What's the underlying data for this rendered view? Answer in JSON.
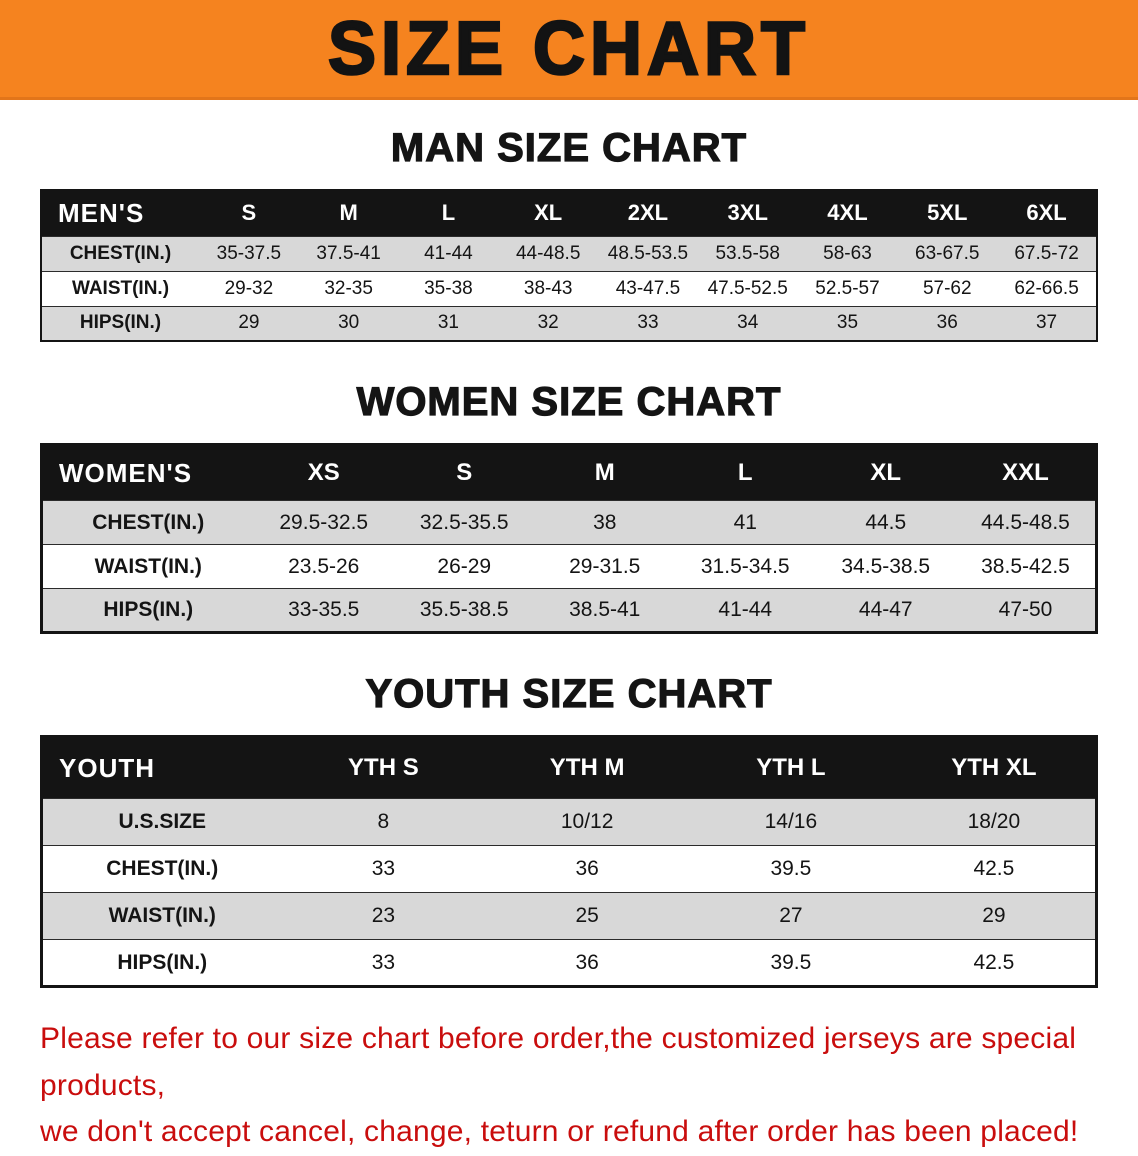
{
  "banner": {
    "title": "SIZE CHART"
  },
  "headings": {
    "men": "MAN SIZE CHART",
    "women": "WOMEN SIZE CHART",
    "youth": "YOUTH SIZE CHART"
  },
  "tables": {
    "men": {
      "header_label": "MEN'S",
      "columns": [
        "S",
        "M",
        "L",
        "XL",
        "2XL",
        "3XL",
        "4XL",
        "5XL",
        "6XL"
      ],
      "rows": [
        {
          "label": "CHEST(IN.)",
          "values": [
            "35-37.5",
            "37.5-41",
            "41-44",
            "44-48.5",
            "48.5-53.5",
            "53.5-58",
            "58-63",
            "63-67.5",
            "67.5-72"
          ]
        },
        {
          "label": "WAIST(IN.)",
          "values": [
            "29-32",
            "32-35",
            "35-38",
            "38-43",
            "43-47.5",
            "47.5-52.5",
            "52.5-57",
            "57-62",
            "62-66.5"
          ]
        },
        {
          "label": "HIPS(IN.)",
          "values": [
            "29",
            "30",
            "31",
            "32",
            "33",
            "34",
            "35",
            "36",
            "37"
          ]
        }
      ]
    },
    "women": {
      "header_label": "WOMEN'S",
      "columns": [
        "XS",
        "S",
        "M",
        "L",
        "XL",
        "XXL"
      ],
      "rows": [
        {
          "label": "CHEST(IN.)",
          "values": [
            "29.5-32.5",
            "32.5-35.5",
            "38",
            "41",
            "44.5",
            "44.5-48.5"
          ]
        },
        {
          "label": "WAIST(IN.)",
          "values": [
            "23.5-26",
            "26-29",
            "29-31.5",
            "31.5-34.5",
            "34.5-38.5",
            "38.5-42.5"
          ]
        },
        {
          "label": "HIPS(IN.)",
          "values": [
            "33-35.5",
            "35.5-38.5",
            "38.5-41",
            "41-44",
            "44-47",
            "47-50"
          ]
        }
      ]
    },
    "youth": {
      "header_label": "YOUTH",
      "columns": [
        "YTH S",
        "YTH M",
        "YTH L",
        "YTH XL"
      ],
      "rows": [
        {
          "label": "U.S.SIZE",
          "values": [
            "8",
            "10/12",
            "14/16",
            "18/20"
          ]
        },
        {
          "label": "CHEST(IN.)",
          "values": [
            "33",
            "36",
            "39.5",
            "42.5"
          ]
        },
        {
          "label": "WAIST(IN.)",
          "values": [
            "23",
            "25",
            "27",
            "29"
          ]
        },
        {
          "label": "HIPS(IN.)",
          "values": [
            "33",
            "36",
            "39.5",
            "42.5"
          ]
        }
      ]
    }
  },
  "footer": {
    "line1": "Please refer to our size chart before order,the customized jerseys are special products,",
    "line2": "we don't accept cancel, change, teturn or refund after order has been placed!"
  },
  "colors": {
    "banner_bg": "#f5831f",
    "table_header_bg": "#141414",
    "row_stripe": "#d8d8d8",
    "note_text": "#c90d0d"
  }
}
